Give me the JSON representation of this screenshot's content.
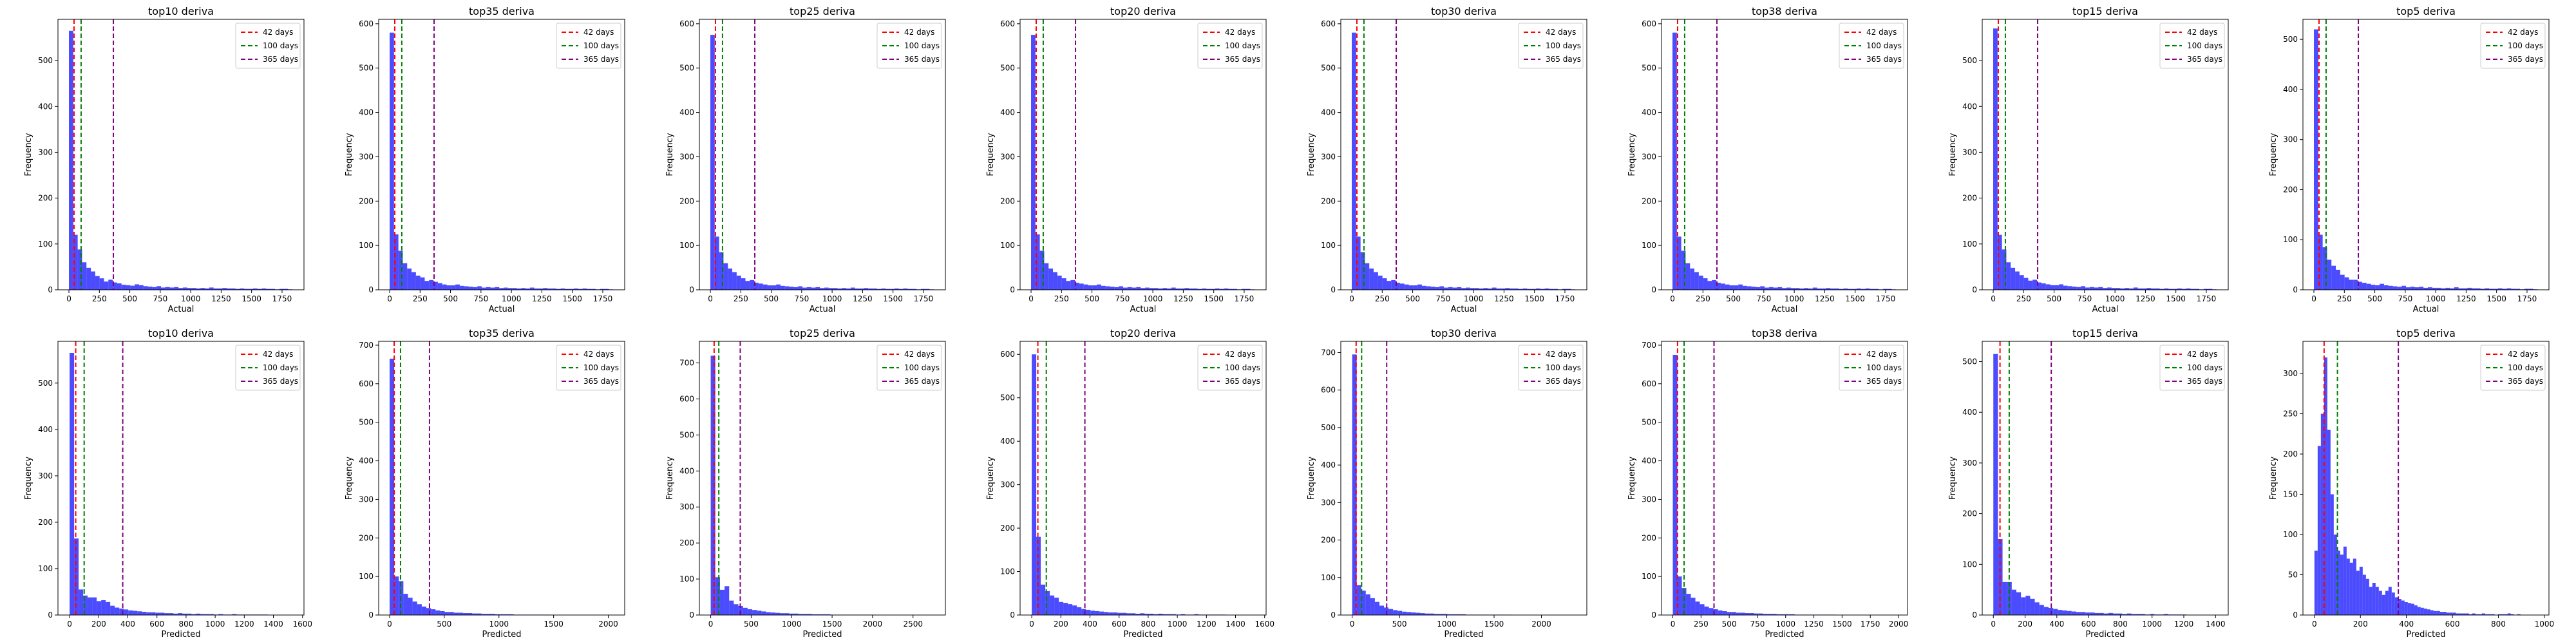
{
  "colors": {
    "bars": "#0000ff",
    "line_42": "#ff0000",
    "line_100": "#008000",
    "line_365": "#800080"
  },
  "legend": {
    "placement": "top-right",
    "entries": [
      {
        "label": "42 days",
        "x": 42,
        "color": "#ff0000"
      },
      {
        "label": "100 days",
        "x": 100,
        "color": "#008000"
      },
      {
        "label": "365 days",
        "x": 365,
        "color": "#800080"
      }
    ]
  },
  "chart_data": [
    {
      "type": "bar",
      "title": "top10 deriva",
      "xlabel": "Actual",
      "ylabel": "Frequency",
      "xlim": [
        -90,
        1930
      ],
      "ylim": [
        0,
        590
      ],
      "xticks": [
        0,
        250,
        500,
        750,
        1000,
        1250,
        1500,
        1750
      ],
      "yticks": [
        0,
        100,
        200,
        300,
        400,
        500
      ],
      "bin_start": 0,
      "bin_width": 36,
      "values": [
        565,
        120,
        88,
        60,
        48,
        40,
        30,
        25,
        18,
        22,
        16,
        14,
        11,
        10,
        9,
        12,
        10,
        8,
        7,
        6,
        8,
        5,
        6,
        5,
        6,
        4,
        5,
        4,
        4,
        3,
        4,
        3,
        5,
        3,
        3,
        4,
        3,
        3,
        2,
        3,
        2,
        2,
        3,
        2,
        3,
        2,
        2,
        1,
        2,
        2,
        1
      ]
    },
    {
      "type": "bar",
      "title": "top35 deriva",
      "xlabel": "Actual",
      "ylabel": "Frequency",
      "xlim": [
        -90,
        1930
      ],
      "ylim": [
        0,
        610
      ],
      "xticks": [
        0,
        250,
        500,
        750,
        1000,
        1250,
        1500,
        1750
      ],
      "yticks": [
        0,
        100,
        200,
        300,
        400,
        500,
        600
      ],
      "bin_start": 0,
      "bin_width": 36,
      "values": [
        580,
        125,
        88,
        60,
        48,
        40,
        32,
        28,
        20,
        22,
        18,
        15,
        12,
        10,
        10,
        12,
        9,
        8,
        7,
        6,
        8,
        5,
        6,
        5,
        6,
        4,
        5,
        4,
        4,
        3,
        4,
        3,
        5,
        3,
        3,
        4,
        3,
        3,
        2,
        3,
        2,
        2,
        3,
        2,
        3,
        2,
        2,
        1,
        2,
        2,
        1
      ]
    },
    {
      "type": "bar",
      "title": "top25 deriva",
      "xlabel": "Actual",
      "ylabel": "Frequency",
      "xlim": [
        -90,
        1930
      ],
      "ylim": [
        0,
        610
      ],
      "xticks": [
        0,
        250,
        500,
        750,
        1000,
        1250,
        1500,
        1750
      ],
      "yticks": [
        0,
        100,
        200,
        300,
        400,
        500,
        600
      ],
      "bin_start": 0,
      "bin_width": 36,
      "values": [
        575,
        120,
        85,
        60,
        48,
        40,
        32,
        26,
        20,
        22,
        16,
        14,
        12,
        10,
        10,
        12,
        9,
        8,
        7,
        6,
        8,
        5,
        6,
        5,
        6,
        4,
        5,
        4,
        4,
        3,
        4,
        3,
        5,
        3,
        3,
        4,
        3,
        3,
        2,
        3,
        2,
        2,
        3,
        2,
        3,
        2,
        2,
        1,
        2,
        2,
        1
      ]
    },
    {
      "type": "bar",
      "title": "top20 deriva",
      "xlabel": "Actual",
      "ylabel": "Frequency",
      "xlim": [
        -90,
        1930
      ],
      "ylim": [
        0,
        610
      ],
      "xticks": [
        0,
        250,
        500,
        750,
        1000,
        1250,
        1500,
        1750
      ],
      "yticks": [
        0,
        100,
        200,
        300,
        400,
        500,
        600
      ],
      "bin_start": 0,
      "bin_width": 36,
      "values": [
        575,
        125,
        88,
        60,
        48,
        40,
        32,
        26,
        20,
        22,
        16,
        14,
        12,
        10,
        10,
        12,
        9,
        8,
        7,
        6,
        8,
        5,
        6,
        5,
        6,
        4,
        5,
        4,
        4,
        3,
        4,
        3,
        5,
        3,
        3,
        4,
        3,
        3,
        2,
        3,
        2,
        2,
        3,
        2,
        3,
        2,
        2,
        1,
        2,
        2,
        1
      ]
    },
    {
      "type": "bar",
      "title": "top30 deriva",
      "xlabel": "Actual",
      "ylabel": "Frequency",
      "xlim": [
        -90,
        1930
      ],
      "ylim": [
        0,
        610
      ],
      "xticks": [
        0,
        250,
        500,
        750,
        1000,
        1250,
        1500,
        1750
      ],
      "yticks": [
        0,
        100,
        200,
        300,
        400,
        500,
        600
      ],
      "bin_start": 0,
      "bin_width": 36,
      "values": [
        580,
        120,
        85,
        60,
        48,
        40,
        32,
        26,
        20,
        22,
        16,
        14,
        12,
        10,
        10,
        12,
        9,
        8,
        7,
        6,
        8,
        5,
        6,
        5,
        6,
        4,
        5,
        4,
        4,
        3,
        4,
        3,
        5,
        3,
        3,
        4,
        3,
        3,
        2,
        3,
        2,
        2,
        3,
        2,
        3,
        2,
        2,
        1,
        2,
        2,
        1
      ]
    },
    {
      "type": "bar",
      "title": "top38 deriva",
      "xlabel": "Actual",
      "ylabel": "Frequency",
      "xlim": [
        -90,
        1930
      ],
      "ylim": [
        0,
        610
      ],
      "xticks": [
        0,
        250,
        500,
        750,
        1000,
        1250,
        1500,
        1750
      ],
      "yticks": [
        0,
        100,
        200,
        300,
        400,
        500,
        600
      ],
      "bin_start": 0,
      "bin_width": 36,
      "values": [
        580,
        120,
        88,
        60,
        48,
        40,
        32,
        26,
        20,
        22,
        16,
        14,
        12,
        10,
        10,
        12,
        9,
        8,
        7,
        6,
        8,
        5,
        6,
        5,
        6,
        4,
        5,
        4,
        4,
        3,
        4,
        3,
        5,
        3,
        3,
        4,
        3,
        3,
        2,
        3,
        2,
        2,
        3,
        2,
        3,
        2,
        2,
        1,
        2,
        2,
        1
      ]
    },
    {
      "type": "bar",
      "title": "top15 deriva",
      "xlabel": "Actual",
      "ylabel": "Frequency",
      "xlim": [
        -90,
        1930
      ],
      "ylim": [
        0,
        590
      ],
      "xticks": [
        0,
        250,
        500,
        750,
        1000,
        1250,
        1500,
        1750
      ],
      "yticks": [
        0,
        100,
        200,
        300,
        400,
        500
      ],
      "bin_start": 0,
      "bin_width": 36,
      "values": [
        570,
        120,
        88,
        60,
        48,
        40,
        32,
        26,
        20,
        22,
        16,
        14,
        12,
        10,
        10,
        12,
        9,
        8,
        7,
        6,
        8,
        5,
        6,
        5,
        6,
        4,
        5,
        4,
        4,
        3,
        4,
        3,
        5,
        3,
        3,
        4,
        3,
        3,
        2,
        3,
        2,
        2,
        3,
        2,
        3,
        2,
        2,
        1,
        2,
        2,
        1
      ]
    },
    {
      "type": "bar",
      "title": "top5 deriva",
      "xlabel": "Actual",
      "ylabel": "Frequency",
      "xlim": [
        -90,
        1930
      ],
      "ylim": [
        0,
        540
      ],
      "xticks": [
        0,
        250,
        500,
        750,
        1000,
        1250,
        1500,
        1750
      ],
      "yticks": [
        0,
        100,
        200,
        300,
        400,
        500
      ],
      "bin_start": 0,
      "bin_width": 36,
      "values": [
        520,
        110,
        85,
        60,
        48,
        40,
        30,
        25,
        20,
        20,
        16,
        14,
        12,
        10,
        9,
        12,
        9,
        8,
        7,
        6,
        8,
        5,
        6,
        5,
        6,
        4,
        5,
        4,
        4,
        3,
        4,
        3,
        5,
        3,
        3,
        4,
        3,
        3,
        2,
        3,
        2,
        2,
        3,
        2,
        3,
        2,
        2,
        1,
        2,
        2,
        1
      ]
    },
    {
      "type": "bar",
      "title": "top10 deriva",
      "xlabel": "Predicted",
      "ylabel": "Frequency",
      "xlim": [
        -80,
        1610
      ],
      "ylim": [
        0,
        590
      ],
      "xticks": [
        0,
        200,
        400,
        600,
        800,
        1000,
        1200,
        1400,
        1600
      ],
      "yticks": [
        0,
        100,
        200,
        300,
        400,
        500
      ],
      "bin_start": 0,
      "bin_width": 31,
      "values": [
        565,
        165,
        55,
        42,
        38,
        38,
        30,
        32,
        28,
        20,
        16,
        14,
        12,
        10,
        9,
        8,
        7,
        6,
        6,
        5,
        5,
        4,
        4,
        3,
        4,
        3,
        3,
        2,
        3,
        2,
        2,
        2,
        1,
        2,
        1,
        1,
        2,
        1,
        1,
        1,
        1,
        1,
        1,
        1
      ]
    },
    {
      "type": "bar",
      "title": "top35 deriva",
      "xlabel": "Predicted",
      "ylabel": "Frequency",
      "xlim": [
        -100,
        2150
      ],
      "ylim": [
        0,
        710
      ],
      "xticks": [
        0,
        500,
        1000,
        1500,
        2000
      ],
      "yticks": [
        0,
        100,
        200,
        300,
        400,
        500,
        600,
        700
      ],
      "bin_start": 0,
      "bin_width": 42,
      "values": [
        665,
        100,
        88,
        55,
        45,
        35,
        28,
        22,
        18,
        15,
        12,
        10,
        8,
        8,
        6,
        6,
        5,
        5,
        4,
        4,
        3,
        3,
        3,
        2,
        2,
        2,
        2,
        1,
        1,
        1,
        1,
        1,
        1,
        1,
        1
      ]
    },
    {
      "type": "bar",
      "title": "top25 deriva",
      "xlabel": "Predicted",
      "ylabel": "Frequency",
      "xlim": [
        -140,
        2900
      ],
      "ylim": [
        0,
        760
      ],
      "xticks": [
        0,
        500,
        1000,
        1500,
        2000,
        2500
      ],
      "yticks": [
        0,
        100,
        200,
        300,
        400,
        500,
        600,
        700
      ],
      "bin_start": 0,
      "bin_width": 57,
      "values": [
        720,
        105,
        70,
        80,
        40,
        30,
        25,
        20,
        16,
        14,
        12,
        10,
        8,
        7,
        6,
        5,
        5,
        4,
        4,
        3,
        3,
        3,
        2,
        2,
        2,
        2,
        1,
        1,
        1,
        1,
        1,
        1,
        1,
        1,
        1,
        1
      ]
    },
    {
      "type": "bar",
      "title": "top20 deriva",
      "xlabel": "Predicted",
      "ylabel": "Frequency",
      "xlim": [
        -80,
        1610
      ],
      "ylim": [
        0,
        630
      ],
      "xticks": [
        0,
        200,
        400,
        600,
        800,
        1000,
        1200,
        1400,
        1600
      ],
      "yticks": [
        0,
        100,
        200,
        300,
        400,
        500,
        600
      ],
      "bin_start": 0,
      "bin_width": 31,
      "values": [
        600,
        180,
        70,
        55,
        45,
        40,
        30,
        28,
        25,
        22,
        18,
        14,
        12,
        10,
        9,
        8,
        7,
        6,
        6,
        5,
        5,
        4,
        4,
        3,
        4,
        3,
        3,
        2,
        3,
        2,
        2,
        2,
        1,
        2,
        1,
        1,
        2,
        1,
        1,
        1,
        1,
        1,
        1
      ]
    },
    {
      "type": "bar",
      "title": "top30 deriva",
      "xlabel": "Predicted",
      "ylabel": "Frequency",
      "xlim": [
        -120,
        2480
      ],
      "ylim": [
        0,
        730
      ],
      "xticks": [
        0,
        500,
        1000,
        1500,
        2000
      ],
      "yticks": [
        0,
        100,
        200,
        300,
        400,
        500,
        600,
        700
      ],
      "bin_start": 0,
      "bin_width": 48,
      "values": [
        695,
        80,
        65,
        55,
        45,
        35,
        25,
        20,
        16,
        13,
        11,
        9,
        8,
        7,
        6,
        5,
        4,
        4,
        3,
        3,
        3,
        2,
        2,
        2,
        2,
        1,
        1,
        1,
        1,
        1,
        1,
        1,
        1,
        1,
        1
      ]
    },
    {
      "type": "bar",
      "title": "top38 deriva",
      "xlabel": "Predicted",
      "ylabel": "Frequency",
      "xlim": [
        -100,
        2080
      ],
      "ylim": [
        0,
        710
      ],
      "xticks": [
        0,
        250,
        500,
        750,
        1000,
        1250,
        1500,
        1750,
        2000
      ],
      "yticks": [
        0,
        100,
        200,
        300,
        400,
        500,
        600,
        700
      ],
      "bin_start": 0,
      "bin_width": 40,
      "values": [
        675,
        100,
        70,
        55,
        45,
        35,
        28,
        22,
        18,
        15,
        12,
        10,
        8,
        8,
        6,
        6,
        5,
        5,
        4,
        4,
        3,
        3,
        3,
        2,
        2,
        2,
        2,
        1,
        1,
        1,
        1,
        1,
        1,
        1,
        1,
        1
      ]
    },
    {
      "type": "bar",
      "title": "top15 deriva",
      "xlabel": "Predicted",
      "ylabel": "Frequency",
      "xlim": [
        -70,
        1480
      ],
      "ylim": [
        0,
        540
      ],
      "xticks": [
        0,
        200,
        400,
        600,
        800,
        1000,
        1200,
        1400
      ],
      "yticks": [
        0,
        100,
        200,
        300,
        400,
        500
      ],
      "bin_start": 0,
      "bin_width": 29,
      "values": [
        515,
        150,
        65,
        65,
        50,
        45,
        35,
        38,
        32,
        25,
        20,
        16,
        14,
        12,
        10,
        9,
        8,
        7,
        6,
        6,
        5,
        5,
        4,
        4,
        3,
        4,
        3,
        3,
        2,
        3,
        2,
        2,
        2,
        1,
        2,
        1,
        1,
        2,
        1,
        1,
        1,
        1
      ]
    },
    {
      "type": "bar",
      "title": "top5 deriva",
      "xlabel": "Predicted",
      "ylabel": "Frequency",
      "xlim": [
        -50,
        1020
      ],
      "ylim": [
        0,
        340
      ],
      "xticks": [
        0,
        200,
        400,
        600,
        800,
        1000
      ],
      "yticks": [
        0,
        50,
        100,
        150,
        200,
        250,
        300
      ],
      "bin_start": 0,
      "bin_width": 14,
      "values": [
        80,
        210,
        250,
        320,
        230,
        150,
        100,
        80,
        75,
        85,
        70,
        65,
        70,
        55,
        60,
        50,
        45,
        35,
        40,
        35,
        30,
        25,
        30,
        35,
        28,
        22,
        20,
        18,
        16,
        15,
        14,
        12,
        10,
        9,
        8,
        7,
        6,
        5,
        5,
        4,
        4,
        3,
        3,
        3,
        2,
        2,
        2,
        2,
        1,
        2,
        1,
        1,
        2,
        1,
        1,
        1,
        0,
        1,
        1,
        1,
        2,
        1,
        0,
        1
      ]
    }
  ]
}
